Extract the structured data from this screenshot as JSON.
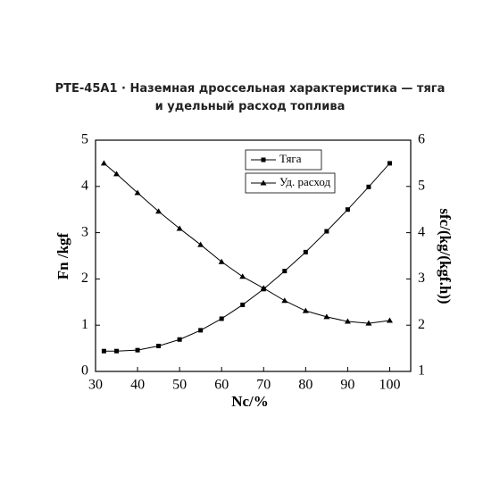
{
  "chart_data": {
    "type": "line",
    "title": "PTE-45A1 · Наземная дроссельная характеристика — тяга и удельный расход топлива",
    "x_label": "Nc/%",
    "y_label": "Fn /kgf",
    "y2_label": "sfc/(kg/(kgf.h))",
    "x": [
      32,
      35,
      40,
      45,
      50,
      55,
      60,
      65,
      70,
      75,
      80,
      85,
      90,
      95,
      100
    ],
    "series": [
      {
        "name": "Тяга",
        "color": "#000000",
        "marker": "square",
        "axis": "y",
        "values": [
          0.44,
          0.44,
          0.46,
          0.55,
          0.69,
          0.89,
          1.14,
          1.44,
          1.78,
          2.17,
          2.58,
          3.03,
          3.5,
          3.99,
          4.5
        ]
      },
      {
        "name": "Уд. расход",
        "color": "#000000",
        "marker": "triangle",
        "axis": "y2",
        "values": [
          5.5,
          5.27,
          4.86,
          4.46,
          4.09,
          3.74,
          3.37,
          3.05,
          2.8,
          2.53,
          2.31,
          2.18,
          2.08,
          2.04,
          2.1
        ]
      }
    ],
    "xlim": [
      30,
      105
    ],
    "xticks": [
      30,
      40,
      50,
      60,
      70,
      80,
      90,
      100
    ],
    "ylim": [
      0,
      5
    ],
    "yticks": [
      0,
      1,
      2,
      3,
      4,
      5
    ],
    "y2lim": [
      1,
      6
    ],
    "y2ticks": [
      1,
      2,
      3,
      4,
      5,
      6
    ],
    "legend": "upper center"
  }
}
